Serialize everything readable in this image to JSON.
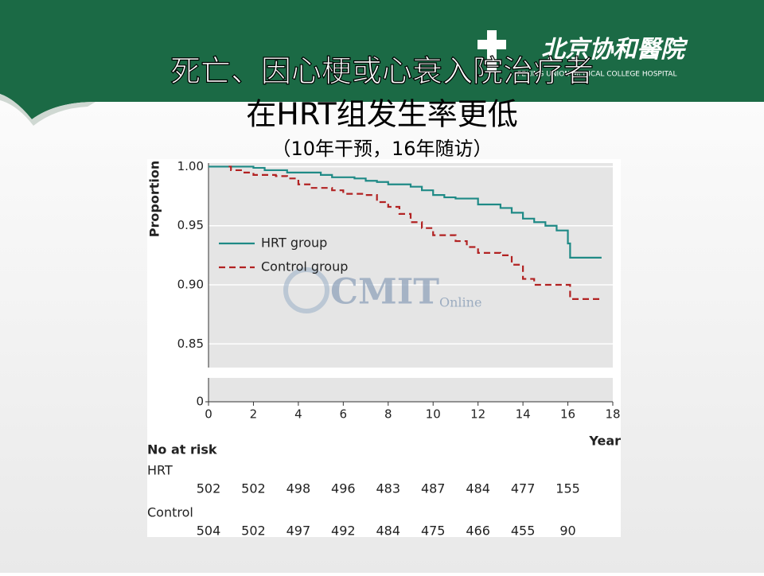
{
  "header": {
    "logo_cn": "北京协和醫院",
    "logo_en": "PEKING UNION MEDICAL COLLEGE HOSPITAL"
  },
  "slide": {
    "title_lines": [
      "死亡、因心梗或心衰入院治疗者",
      "在HRT组发生率更低"
    ],
    "subtitle": "（10年干预，16年随访）"
  },
  "chart_data": {
    "type": "line",
    "step": true,
    "xlabel": "Year",
    "ylabel": "Proportion",
    "xlim": [
      0,
      18
    ],
    "xticks": [
      0,
      2,
      4,
      6,
      8,
      10,
      12,
      14,
      16,
      18
    ],
    "ylim": [
      0.83,
      1.003
    ],
    "yticks": [
      {
        "value": 0.85,
        "label": "0.85"
      },
      {
        "value": 0.9,
        "label": "0.90"
      },
      {
        "value": 0.95,
        "label": "0.95"
      },
      {
        "value": 1,
        "label": "1.00"
      }
    ],
    "lower_panel_yticks": [
      0
    ],
    "grid": true,
    "legend": "upper left",
    "watermark": [
      "CMIT",
      "Online"
    ],
    "series": [
      {
        "name": "HRT group",
        "color": "#1f8a86",
        "dash": false,
        "x": [
          0,
          2,
          2.5,
          3.5,
          5,
          5.5,
          6.5,
          7,
          7.5,
          8,
          9,
          9.5,
          10,
          10.5,
          11,
          12,
          13,
          13.5,
          14,
          14.5,
          15,
          15.5,
          16,
          16.1,
          17.5
        ],
        "values": [
          1,
          0.999,
          0.997,
          0.995,
          0.993,
          0.991,
          0.99,
          0.988,
          0.987,
          0.985,
          0.983,
          0.98,
          0.976,
          0.974,
          0.973,
          0.968,
          0.965,
          0.961,
          0.956,
          0.953,
          0.95,
          0.946,
          0.935,
          0.923,
          0.923
        ]
      },
      {
        "name": "Control group",
        "color": "#b22222",
        "dash": true,
        "x": [
          0.9,
          1,
          1.5,
          2,
          3,
          3.5,
          4,
          4.5,
          5.5,
          6,
          7,
          7.5,
          8,
          8.5,
          9,
          9.5,
          10,
          11,
          11.5,
          12,
          13,
          13.5,
          14,
          14.5,
          16,
          16.1,
          17.5
        ],
        "values": [
          1,
          0.997,
          0.995,
          0.993,
          0.992,
          0.99,
          0.985,
          0.982,
          0.98,
          0.977,
          0.976,
          0.97,
          0.966,
          0.96,
          0.953,
          0.948,
          0.942,
          0.937,
          0.932,
          0.927,
          0.925,
          0.917,
          0.905,
          0.9,
          0.9,
          0.888,
          0.888
        ]
      }
    ],
    "risk_table": {
      "title": "No at risk",
      "rows": [
        {
          "name": "HRT",
          "values": [
            502,
            502,
            498,
            496,
            483,
            487,
            484,
            477,
            155
          ]
        },
        {
          "name": "Control",
          "values": [
            504,
            502,
            497,
            492,
            484,
            475,
            466,
            455,
            90
          ]
        }
      ]
    }
  }
}
